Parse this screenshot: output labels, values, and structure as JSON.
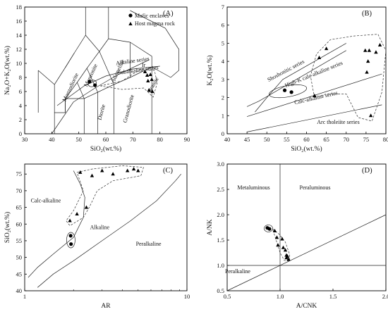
{
  "chart_data": [
    {
      "type": "scatter",
      "panel": "(A)",
      "xlabel": "SiO₂(wt.%)",
      "ylabel": "Na₂O+K₂O(wt.%)",
      "xlim": [
        30,
        90
      ],
      "ylim": [
        0,
        18
      ],
      "xticks": [
        "30",
        "40",
        "50",
        "60",
        "70",
        "80",
        "90"
      ],
      "yticks": [
        "0",
        "2",
        "4",
        "6",
        "8",
        "10",
        "12",
        "14",
        "16",
        "18"
      ],
      "legend": [
        "Mafic enclaves",
        "Host magma rock"
      ],
      "field_labels": [
        "Alkaline series",
        "Ir",
        "Subalkaline series",
        "Monzonite",
        "Adamellite",
        "Monzodiorite",
        "Diorite",
        "Granodiorite",
        "Granite"
      ],
      "series": [
        {
          "name": "Mafic enclaves",
          "marker": "circle",
          "x": [
            54.0,
            56.0
          ],
          "y": [
            7.4,
            6.9
          ]
        },
        {
          "name": "Host magma rock",
          "marker": "triangle",
          "x": [
            74.5,
            75.3,
            76.5,
            75.6,
            77.0,
            76.0,
            77.2
          ],
          "y": [
            8.8,
            8.3,
            8.4,
            7.5,
            7.7,
            6.2,
            6.0
          ]
        }
      ]
    },
    {
      "type": "scatter",
      "panel": "(B)",
      "xlabel": "SiO₂(wt.%)",
      "ylabel": "K₂O(wt.%)",
      "xlim": [
        40,
        80
      ],
      "ylim": [
        0,
        7
      ],
      "xticks": [
        "40",
        "45",
        "50",
        "55",
        "60",
        "65",
        "70",
        "75",
        "80"
      ],
      "yticks": [
        "0",
        "1",
        "2",
        "3",
        "4",
        "5",
        "6",
        "7"
      ],
      "field_labels": [
        "Shoshonitic series",
        "High-K calc-alkaline series",
        "Calc-alkaline series",
        "Arc tholeiite series"
      ],
      "series": [
        {
          "name": "Mafic enclaves",
          "marker": "circle",
          "x": [
            54.5,
            56.2
          ],
          "y": [
            2.4,
            2.3
          ]
        },
        {
          "name": "Host magma rock",
          "marker": "triangle",
          "x": [
            65.0,
            63.2,
            62.0,
            74.8,
            75.8,
            75.5,
            78.5,
            77.5,
            75.2,
            76.2
          ],
          "y": [
            4.7,
            4.2,
            2.1,
            4.6,
            4.6,
            4.0,
            4.9,
            4.5,
            3.4,
            1.0
          ]
        }
      ]
    },
    {
      "type": "scatter",
      "panel": "(C)",
      "xlabel": "AR",
      "ylabel": "SiO₂(wt.%)",
      "xscale": "log",
      "xlim": [
        1,
        10
      ],
      "ylim": [
        40,
        78
      ],
      "xticks": [
        "1",
        "10"
      ],
      "yticks": [
        "40",
        "45",
        "50",
        "55",
        "60",
        "65",
        "70",
        "75"
      ],
      "field_labels": [
        "Calc-alkaline",
        "Alkaline",
        "Peralkaline"
      ],
      "series": [
        {
          "name": "Mafic enclaves",
          "marker": "circle",
          "x": [
            1.92,
            1.93
          ],
          "y": [
            56.5,
            54.0
          ]
        },
        {
          "name": "Host magma rock",
          "marker": "triangle",
          "x": [
            2.2,
            2.6,
            3.0,
            3.5,
            4.3,
            4.7,
            5.0,
            2.4,
            2.1,
            1.9
          ],
          "y": [
            75.5,
            74.5,
            76.0,
            75.0,
            76.0,
            76.5,
            76.0,
            65.0,
            63.0,
            61.0
          ]
        }
      ]
    },
    {
      "type": "scatter",
      "panel": "(D)",
      "xlabel": "A/CNK",
      "ylabel": "A/NK",
      "xlim": [
        0.5,
        2.0
      ],
      "ylim": [
        0.5,
        3.0
      ],
      "xticks": [
        "0.5",
        "1.0",
        "1.5",
        "2.0"
      ],
      "yticks": [
        "0.5",
        "1.0",
        "1.5",
        "2.0",
        "2.5",
        "3.0"
      ],
      "field_labels": [
        "Metaluminous",
        "Peraluminous",
        "Peralkaline"
      ],
      "series": [
        {
          "name": "Mafic enclaves",
          "marker": "circle",
          "x": [
            0.88,
            0.9
          ],
          "y": [
            1.74,
            1.72
          ]
        },
        {
          "name": "Host magma rock",
          "marker": "triangle",
          "x": [
            0.95,
            0.97,
            0.98,
            1.02,
            1.03,
            1.05,
            1.06,
            1.07,
            1.08,
            1.06
          ],
          "y": [
            1.68,
            1.55,
            1.4,
            1.52,
            1.35,
            1.3,
            1.2,
            1.18,
            1.12,
            1.15
          ]
        }
      ]
    }
  ]
}
